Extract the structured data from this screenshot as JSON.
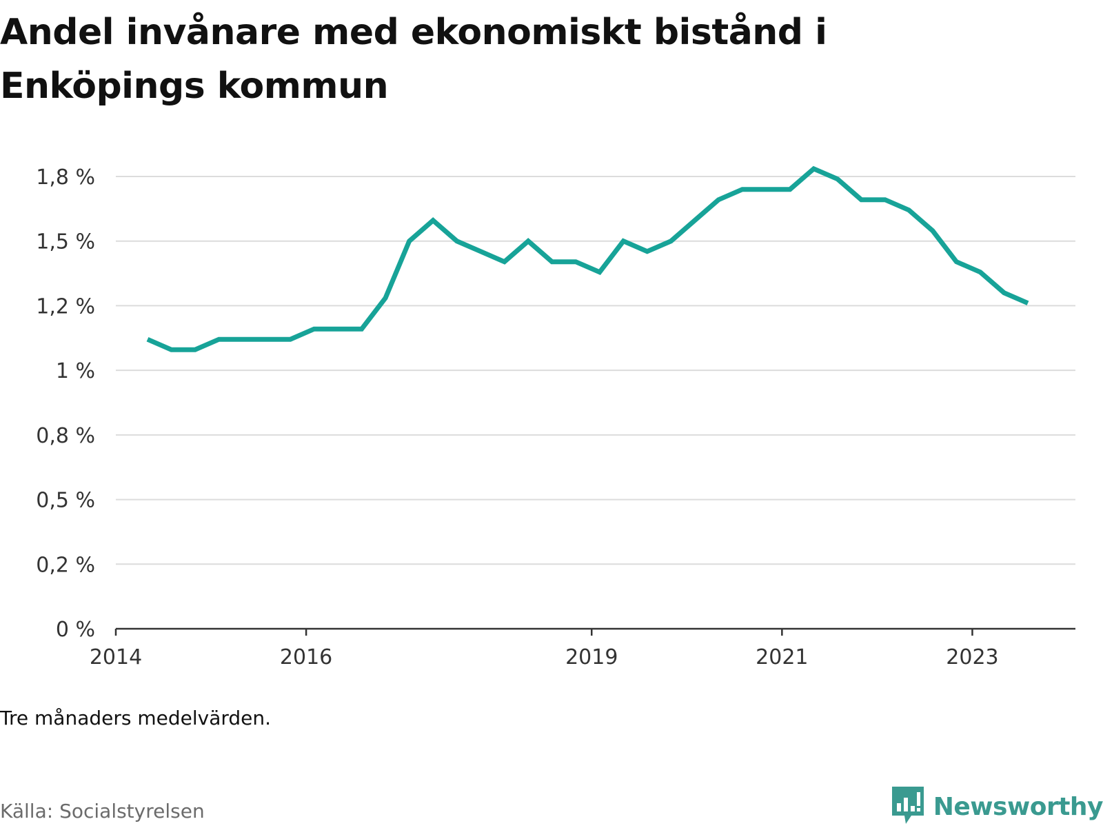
{
  "title": "Andel invånare med ekonomiskt bistånd i Enköpings kommun",
  "note": "Tre månaders medelvärden.",
  "source": "Källa: Socialstyrelsen",
  "brand": {
    "name": "Newsworthy",
    "logo_icon": "newsworthy-logo-icon",
    "color": "#3a9a90"
  },
  "chart_data": {
    "type": "line",
    "title": "Andel invånare med ekonomiskt bistånd i Enköpings kommun",
    "xlabel": "",
    "ylabel": "",
    "x": [
      "2014-05",
      "2014-08",
      "2014-11",
      "2015-02",
      "2015-05",
      "2015-08",
      "2015-11",
      "2016-02",
      "2016-05",
      "2016-08",
      "2016-11",
      "2017-02",
      "2017-05",
      "2017-08",
      "2017-11",
      "2018-02",
      "2018-05",
      "2018-08",
      "2018-11",
      "2019-02",
      "2019-05",
      "2019-08",
      "2019-11",
      "2020-02",
      "2020-05",
      "2020-08",
      "2020-11",
      "2021-02",
      "2021-05",
      "2021-08",
      "2021-11",
      "2022-02",
      "2022-05",
      "2022-08",
      "2022-11",
      "2023-02",
      "2023-05",
      "2023-08"
    ],
    "series": [
      {
        "color": "#17a398",
        "values": [
          1.12,
          1.08,
          1.08,
          1.12,
          1.12,
          1.12,
          1.12,
          1.16,
          1.16,
          1.16,
          1.28,
          1.5,
          1.58,
          1.5,
          1.46,
          1.42,
          1.5,
          1.42,
          1.42,
          1.38,
          1.5,
          1.46,
          1.5,
          1.58,
          1.66,
          1.7,
          1.7,
          1.7,
          1.78,
          1.74,
          1.66,
          1.66,
          1.62,
          1.54,
          1.42,
          1.38,
          1.3,
          1.26
        ]
      }
    ],
    "yticks": [
      0,
      0.25,
      0.5,
      0.75,
      1,
      1.25,
      1.5,
      1.75
    ],
    "ytick_labels": [
      "0 %",
      "0,2 %",
      "0,5 %",
      "0,8 %",
      "1 %",
      "1,2 %",
      "1,5 %",
      "1,8 %"
    ],
    "xticks": [
      "2014",
      "2016",
      "2019",
      "2021",
      "2023"
    ],
    "ylim": [
      0,
      1.75
    ],
    "xlim": [
      "2014-01",
      "2024-02"
    ],
    "grid": true,
    "legend": "none"
  }
}
